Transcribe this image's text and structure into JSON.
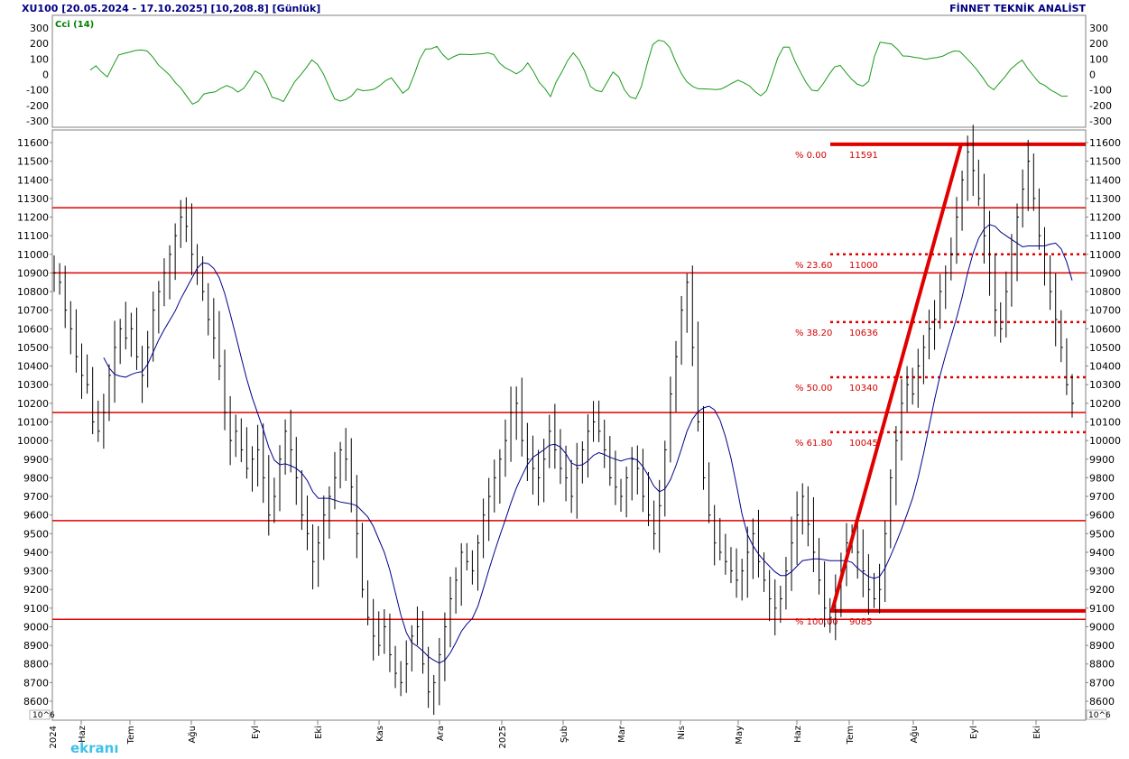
{
  "header": {
    "title": "XU100  [20.05.2024 - 17.10.2025]  [10,208.8]  [Günlük]",
    "brand": "FİNNET TEKNİK ANALİST"
  },
  "cci_panel": {
    "label": "Cci (14)",
    "y_ticks": [
      "300",
      "200",
      "100",
      "0",
      "-100",
      "-200",
      "-300"
    ],
    "color": "#1a9a1a"
  },
  "price_panel": {
    "scale_label": "10^6",
    "y_ticks": [
      "11600",
      "11500",
      "11400",
      "11300",
      "11200",
      "11100",
      "11000",
      "10900",
      "10800",
      "10700",
      "10600",
      "10500",
      "10400",
      "10300",
      "10200",
      "10100",
      "10000",
      "9900",
      "9800",
      "9700",
      "9600",
      "9500",
      "9400",
      "9300",
      "9200",
      "9100",
      "9000",
      "8900",
      "8800",
      "8700",
      "8600"
    ],
    "bar_color": "#000000",
    "ma_color": "#00008b",
    "line_color": "#e00000"
  },
  "x_axis": {
    "labels": [
      "Haz",
      "Tem",
      "Ağu",
      "Eyl",
      "Eki",
      "Kas",
      "Ara",
      "2025",
      "Şub",
      "Mar",
      "Nis",
      "May",
      "Haz",
      "Tem",
      "Ağu",
      "Eyl",
      "Eki"
    ],
    "year_label": "2024"
  },
  "fibonacci": {
    "levels": [
      {
        "pct": "% 0.00",
        "value": "11591"
      },
      {
        "pct": "% 23.60",
        "value": "11000"
      },
      {
        "pct": "% 38.20",
        "value": "10636"
      },
      {
        "pct": "% 50.00",
        "value": "10340"
      },
      {
        "pct": "% 61.80",
        "value": "10045"
      },
      {
        "pct": "% 100.00",
        "value": "9085"
      }
    ]
  },
  "watermark": "ekranı",
  "chart_data": {
    "type": "line",
    "title": "XU100  [20.05.2024 - 17.10.2025]  [10,208.8]  [Günlük]",
    "ylim": [
      8550,
      11700
    ],
    "horizontal_lines": [
      11250,
      10900,
      10150,
      9570,
      9040
    ],
    "fib_lines": [
      11591,
      11000,
      10636,
      10340,
      10045,
      9085
    ],
    "trend_segment": {
      "from": 9085,
      "to": 11591
    },
    "close": [
      10900,
      10850,
      10700,
      10600,
      10450,
      10350,
      10300,
      10100,
      10050,
      10150,
      10350,
      10500,
      10600,
      10550,
      10600,
      10450,
      10350,
      10500,
      10700,
      10800,
      10900,
      11000,
      11100,
      11200,
      11150,
      11000,
      10900,
      10800,
      10650,
      10550,
      10400,
      10150,
      10000,
      10050,
      9950,
      9850,
      9900,
      9950,
      9800,
      9600,
      9700,
      9900,
      10050,
      9950,
      9800,
      9600,
      9500,
      9350,
      9450,
      9600,
      9700,
      9800,
      9950,
      9900,
      9750,
      9500,
      9200,
      9050,
      8950,
      8900,
      9000,
      8850,
      8750,
      8700,
      8800,
      8950,
      9000,
      8800,
      8650,
      8700,
      8850,
      9000,
      9150,
      9250,
      9400,
      9350,
      9300,
      9450,
      9600,
      9700,
      9800,
      9900,
      10000,
      10150,
      10200,
      10000,
      9900,
      9850,
      9800,
      9900,
      10050,
      9950,
      9850,
      9800,
      9700,
      9850,
      9950,
      10050,
      10100,
      10050,
      9950,
      9800,
      9750,
      9700,
      9800,
      9900,
      9850,
      9700,
      9600,
      9500,
      9650,
      9950,
      10250,
      10450,
      10700,
      10850,
      10500,
      10100,
      9800,
      9600,
      9450,
      9400,
      9350,
      9300,
      9250,
      9300,
      9400,
      9500,
      9350,
      9250,
      9150,
      9100,
      9150,
      9300,
      9450,
      9600,
      9700,
      9550,
      9400,
      9250,
      9100,
      9050,
      9150,
      9300,
      9450,
      9500,
      9400,
      9300,
      9200,
      9150,
      9200,
      9500,
      9800,
      10000,
      10200,
      10300,
      10250,
      10400,
      10500,
      10600,
      10650,
      10800,
      10900,
      11000,
      11200,
      11400,
      11550,
      11450,
      11300,
      11100,
      10900,
      10700,
      10600,
      10800,
      11000,
      11200,
      11350,
      11500,
      11300,
      11100,
      10900,
      10800,
      10650,
      10500,
      10300,
      10200
    ]
  }
}
